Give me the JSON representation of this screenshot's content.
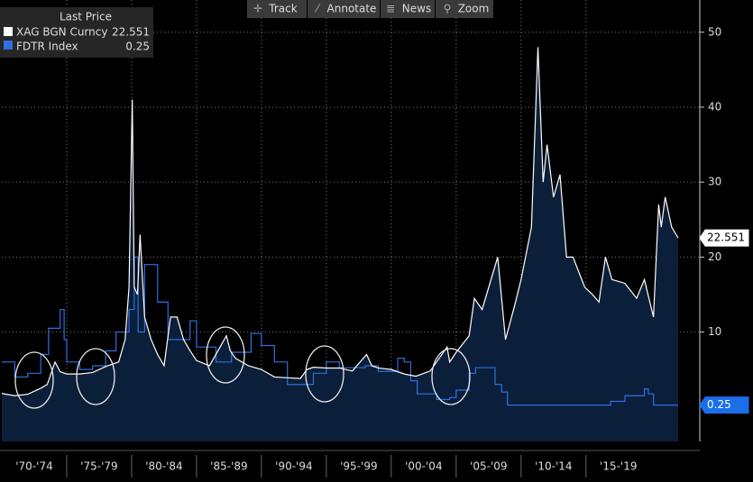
{
  "toolbar": [
    "Track",
    "Annotate",
    "News",
    "Zoom"
  ],
  "chart_data": {
    "type": "line",
    "legend_title": "Last Price",
    "xlim": [
      1970,
      2022.1
    ],
    "ylim": [
      -4.6,
      54.3
    ],
    "xticks": [
      {
        "value": 1972.5,
        "label": "'70-'74"
      },
      {
        "value": 1977.5,
        "label": "'75-'79"
      },
      {
        "value": 1982.5,
        "label": "'80-'84"
      },
      {
        "value": 1987.5,
        "label": "'85-'89"
      },
      {
        "value": 1992.5,
        "label": "'90-'94"
      },
      {
        "value": 1997.5,
        "label": "'95-'99"
      },
      {
        "value": 2002.5,
        "label": "'00-'04"
      },
      {
        "value": 2007.5,
        "label": "'05-'09"
      },
      {
        "value": 2012.5,
        "label": "'10-'14"
      },
      {
        "value": 2017.5,
        "label": "'15-'19"
      }
    ],
    "yticks": [
      10,
      20,
      30,
      40,
      50
    ],
    "grid": true,
    "series": [
      {
        "name": "XAG BGN Curncy",
        "color": "#ffffff",
        "fill": "#0b1f3a",
        "x": [
          1970,
          1971,
          1972,
          1973,
          1973.5,
          1974.1,
          1974.5,
          1975,
          1976,
          1977,
          1978,
          1979,
          1979.5,
          1979.8,
          1980.05,
          1980.2,
          1980.45,
          1980.65,
          1981,
          1981.5,
          1982,
          1982.5,
          1983,
          1983.5,
          1984,
          1984.5,
          1985,
          1986,
          1987.3,
          1987.6,
          1988,
          1989,
          1990,
          1991,
          1992,
          1993,
          1993.5,
          1994,
          1995,
          1996,
          1997,
          1998.1,
          1998.5,
          1999,
          2000,
          2001,
          2001.9,
          2003,
          2004.3,
          2004.5,
          2005,
          2006,
          2006.4,
          2007,
          2008.2,
          2008.8,
          2009.5,
          2010,
          2010.8,
          2011.3,
          2011.7,
          2012,
          2012.5,
          2013,
          2013.5,
          2014,
          2014.9,
          2015.5,
          2016,
          2016.5,
          2017,
          2018,
          2018.9,
          2019.5,
          2020.2,
          2020.6,
          2020.8,
          2021.1,
          2021.6,
          2022.1
        ],
        "values": [
          1.8,
          1.5,
          1.7,
          2.5,
          3.0,
          6.0,
          4.7,
          4.4,
          4.4,
          4.6,
          5.4,
          6.0,
          9,
          16,
          41,
          16,
          15,
          23,
          12,
          9,
          7,
          5.5,
          12,
          12,
          9,
          7.5,
          6.2,
          5.5,
          9.5,
          7.5,
          6.5,
          5.5,
          5,
          4,
          3.9,
          3.8,
          5,
          5.3,
          5.2,
          5.2,
          4.8,
          7,
          5.5,
          5.2,
          5.0,
          4.4,
          4.1,
          4.8,
          8,
          6,
          7.3,
          9.5,
          14.5,
          13,
          20,
          9,
          13.5,
          17,
          24,
          48,
          30,
          35,
          28,
          31,
          20,
          20,
          16,
          15,
          14,
          20,
          17,
          16.5,
          14.5,
          17,
          12,
          27,
          24,
          28,
          24,
          22.551
        ]
      },
      {
        "name": "FDTR Index",
        "color": "#2f6fe0",
        "label_color": "#1a6ee8",
        "x": [
          1970,
          1971,
          1972,
          1973,
          1973.6,
          1974.5,
          1974.8,
          1975,
          1976,
          1977,
          1978,
          1978.8,
          1979.8,
          1980.2,
          1980.5,
          1981,
          1981.5,
          1982,
          1982.8,
          1984.5,
          1985,
          1986.5,
          1987.7,
          1989.2,
          1990,
          1991,
          1992,
          1993,
          1994,
          1995,
          1996,
          1998,
          1999,
          2000.5,
          2001,
          2001.5,
          2002,
          2003.5,
          2004.5,
          2005,
          2006,
          2006.5,
          2007.6,
          2008,
          2008.5,
          2008.95,
          2015.9,
          2016.9,
          2018,
          2019.5,
          2019.8,
          2020.2,
          2022.1
        ],
        "values": [
          6,
          4,
          4.5,
          7,
          10.5,
          13,
          9,
          6,
          5,
          5.5,
          7.5,
          10,
          13,
          20,
          10,
          19,
          19,
          14,
          9,
          11.5,
          8,
          6,
          7.3,
          9.8,
          8.2,
          6,
          3,
          3,
          4.5,
          6,
          5.25,
          5.5,
          4.75,
          6.5,
          6,
          3.5,
          1.75,
          1,
          1.25,
          2.25,
          4.5,
          5.25,
          5.25,
          3,
          2,
          0.25,
          0.25,
          0.75,
          1.5,
          2.4,
          1.75,
          0.25,
          0.25
        ]
      }
    ]
  }
}
